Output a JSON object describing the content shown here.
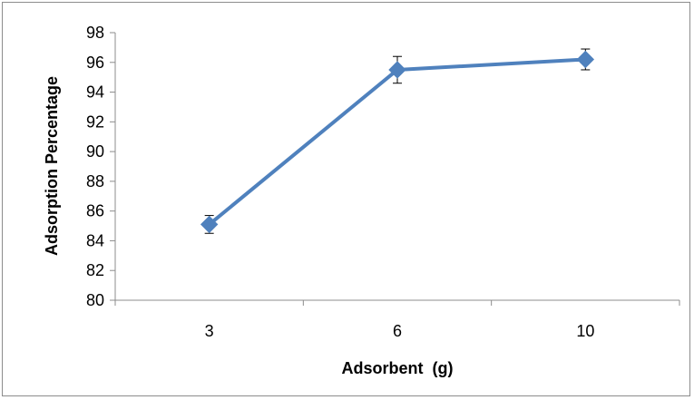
{
  "chart_data": {
    "type": "line",
    "xlabel": "Adsorbent  (g)",
    "ylabel": "Adsorption Percentage",
    "categories": [
      "3",
      "6",
      "10"
    ],
    "series": [
      {
        "values": [
          85.1,
          95.5,
          96.2
        ],
        "error": [
          0.6,
          0.9,
          0.7
        ],
        "color": "#4f81bd",
        "marker": "diamond"
      }
    ],
    "ylim": [
      80,
      98
    ],
    "yticks": [
      80,
      82,
      84,
      86,
      88,
      90,
      92,
      94,
      96,
      98
    ],
    "grid": false,
    "legend": "none"
  }
}
